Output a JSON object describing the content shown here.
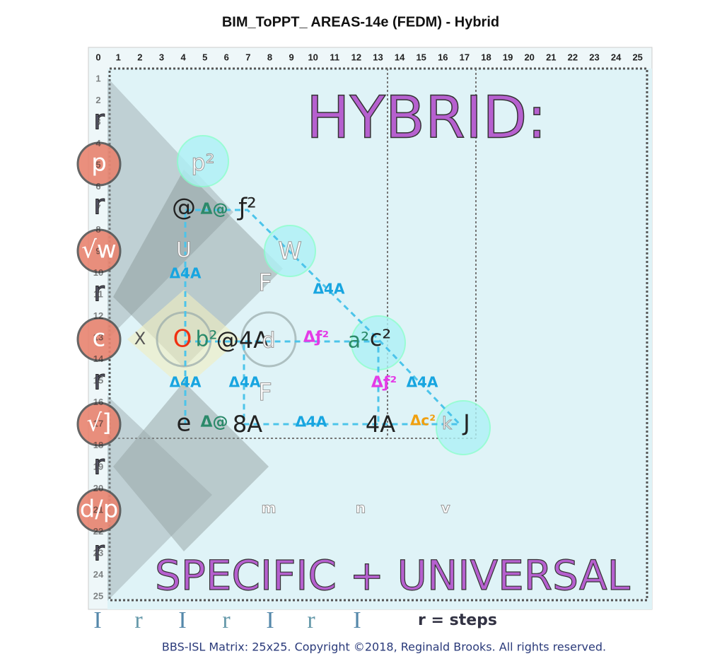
{
  "title": "BIM_ToPPT_ AREAS-14e (FEDM) - Hybrid",
  "matrix": {
    "column_headers": [
      "0",
      "1",
      "2",
      "3",
      "4",
      "5",
      "6",
      "7",
      "8",
      "9",
      "10",
      "11",
      "12",
      "13",
      "14",
      "15",
      "16",
      "17",
      "18",
      "19",
      "20",
      "21",
      "22",
      "23",
      "24",
      "25"
    ],
    "row_headers": [
      "1",
      "2",
      "3",
      "4",
      "5",
      "6",
      "7",
      "8",
      "9",
      "10",
      "11",
      "12",
      "13",
      "14",
      "15",
      "16",
      "17",
      "18",
      "19",
      "20",
      "21",
      "22",
      "23",
      "24",
      "25"
    ]
  },
  "headline": "HYBRID:",
  "subheadline": "SPECIFIC + UNIVERSAL",
  "left_labels": [
    "r",
    "p",
    "r",
    "√w",
    "r",
    "c",
    "r",
    "√]",
    "r",
    "d/p",
    "r"
  ],
  "bottom_labels": [
    "I",
    "r",
    "I",
    "r",
    "I",
    "r",
    "I"
  ],
  "diagram_labels": [
    "@",
    "Δ@",
    "ƒ²",
    "U",
    "W",
    "Δ4A",
    "F",
    "Δ4A",
    "X",
    "O",
    "b²",
    "@4A",
    "d",
    "Δƒ²",
    "a²",
    "c²",
    "Δ4A",
    "Δ4A",
    "F",
    "Δƒ²",
    "Δ4A",
    "e",
    "Δ@",
    "8A",
    "Δ4A",
    "4A",
    "Δc²",
    "k",
    "J",
    "p²",
    "m",
    "n",
    "v"
  ],
  "steps_note": "r = steps",
  "footer": "BBS-ISL Matrix: 25x25. Copyright ©2018, Reginald Brooks. All rights reserved."
}
